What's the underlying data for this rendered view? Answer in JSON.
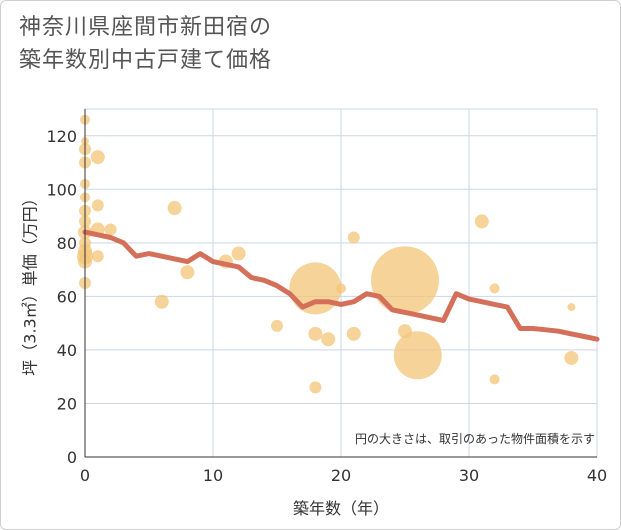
{
  "title_line1": "神奈川県座間市新田宿の",
  "title_line2": "築年数別中古戸建て価格",
  "chart_data": {
    "type": "scatter",
    "title": "神奈川県座間市新田宿の築年数別中古戸建て価格",
    "xlabel": "築年数（年）",
    "ylabel": "坪（3.3㎡）単価（万円）",
    "xlim": [
      0,
      40
    ],
    "ylim": [
      0,
      130
    ],
    "xticks": [
      0,
      10,
      20,
      30,
      40
    ],
    "yticks": [
      0,
      20,
      40,
      60,
      80,
      100,
      120
    ],
    "grid": true,
    "note": "円の大きさは、取引のあった物件面積を示す",
    "colors": {
      "bubble": "#f3c477",
      "line": "#d46f5a",
      "grid": "#c9d7e6"
    },
    "scatter": [
      {
        "x": 0,
        "y": 126,
        "s": 5
      },
      {
        "x": 0,
        "y": 118,
        "s": 4
      },
      {
        "x": 0,
        "y": 115,
        "s": 6
      },
      {
        "x": 0,
        "y": 110,
        "s": 6
      },
      {
        "x": 0,
        "y": 102,
        "s": 5
      },
      {
        "x": 0,
        "y": 97,
        "s": 5
      },
      {
        "x": 0,
        "y": 92,
        "s": 6
      },
      {
        "x": 0,
        "y": 88,
        "s": 6
      },
      {
        "x": 0,
        "y": 84,
        "s": 7
      },
      {
        "x": 0,
        "y": 80,
        "s": 6
      },
      {
        "x": 0,
        "y": 77,
        "s": 7
      },
      {
        "x": 0,
        "y": 75,
        "s": 8
      },
      {
        "x": 0,
        "y": 73,
        "s": 7
      },
      {
        "x": 0,
        "y": 65,
        "s": 6
      },
      {
        "x": 1,
        "y": 112,
        "s": 7
      },
      {
        "x": 1,
        "y": 94,
        "s": 6
      },
      {
        "x": 1,
        "y": 85,
        "s": 7
      },
      {
        "x": 1,
        "y": 75,
        "s": 6
      },
      {
        "x": 2,
        "y": 85,
        "s": 6
      },
      {
        "x": 6,
        "y": 58,
        "s": 7
      },
      {
        "x": 7,
        "y": 93,
        "s": 7
      },
      {
        "x": 8,
        "y": 69,
        "s": 7
      },
      {
        "x": 11,
        "y": 73,
        "s": 7
      },
      {
        "x": 12,
        "y": 76,
        "s": 7
      },
      {
        "x": 15,
        "y": 49,
        "s": 6
      },
      {
        "x": 18,
        "y": 63,
        "s": 26
      },
      {
        "x": 18,
        "y": 46,
        "s": 7
      },
      {
        "x": 18,
        "y": 26,
        "s": 6
      },
      {
        "x": 19,
        "y": 44,
        "s": 7
      },
      {
        "x": 20,
        "y": 63,
        "s": 5
      },
      {
        "x": 21,
        "y": 82,
        "s": 6
      },
      {
        "x": 21,
        "y": 46,
        "s": 7
      },
      {
        "x": 25,
        "y": 66,
        "s": 34
      },
      {
        "x": 25,
        "y": 47,
        "s": 7
      },
      {
        "x": 26,
        "y": 38,
        "s": 24
      },
      {
        "x": 31,
        "y": 88,
        "s": 7
      },
      {
        "x": 32,
        "y": 63,
        "s": 5
      },
      {
        "x": 32,
        "y": 29,
        "s": 5
      },
      {
        "x": 38,
        "y": 56,
        "s": 4
      },
      {
        "x": 38,
        "y": 37,
        "s": 7
      }
    ],
    "trend": {
      "x": [
        0,
        1,
        2,
        3,
        4,
        5,
        6,
        7,
        8,
        9,
        10,
        11,
        12,
        13,
        14,
        15,
        16,
        17,
        18,
        19,
        20,
        21,
        22,
        23,
        24,
        25,
        26,
        27,
        28,
        29,
        30,
        31,
        32,
        33,
        34,
        35,
        36,
        37,
        38,
        39,
        40
      ],
      "y": [
        84,
        83,
        82,
        80,
        75,
        76,
        75,
        74,
        73,
        76,
        73,
        72,
        71,
        67,
        66,
        64,
        61,
        56,
        58,
        58,
        57,
        58,
        61,
        60,
        55,
        54,
        53,
        52,
        51,
        61,
        59,
        58,
        57,
        56,
        48,
        48,
        47.5,
        47,
        46,
        45,
        44
      ]
    }
  }
}
